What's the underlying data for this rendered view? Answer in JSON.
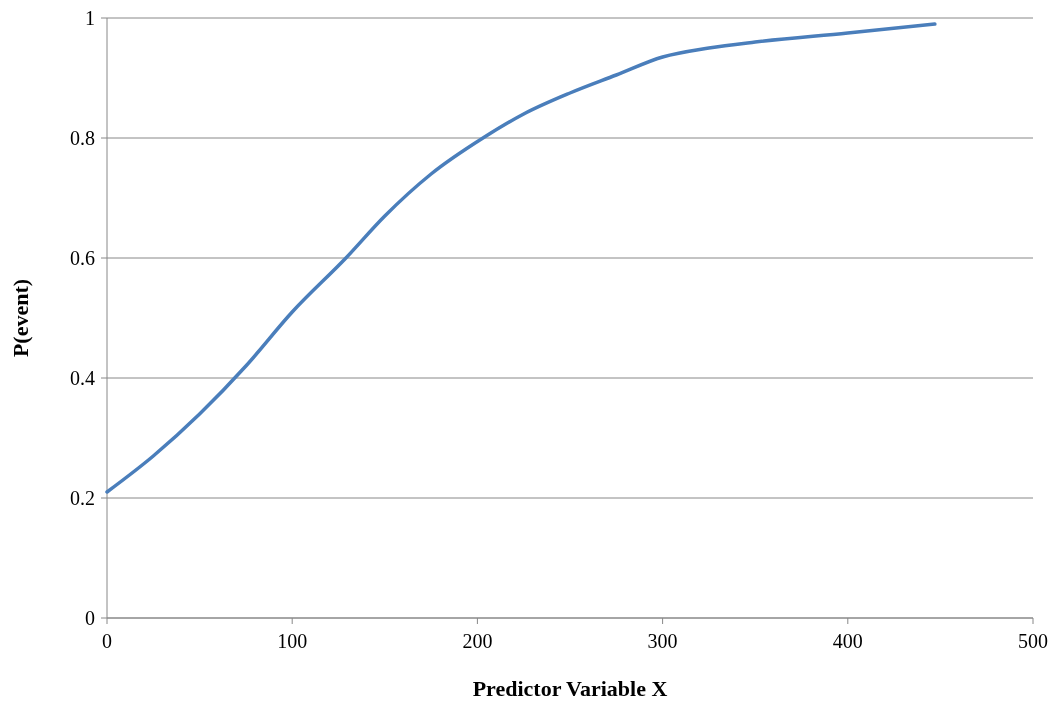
{
  "chart_data": {
    "type": "line",
    "xlabel": "Predictor Variable X",
    "ylabel": "P(event)",
    "series": [
      {
        "color": "#4a7ebb",
        "x": [
          0,
          25,
          50,
          75,
          100,
          129,
          150,
          175,
          203,
          225,
          250,
          275,
          300,
          325,
          350,
          400,
          447
        ],
        "values": [
          0.21,
          0.27,
          0.34,
          0.42,
          0.51,
          0.6,
          0.67,
          0.74,
          0.8,
          0.84,
          0.875,
          0.905,
          0.935,
          0.95,
          0.96,
          0.975,
          0.99
        ]
      }
    ],
    "xlim": [
      0,
      500
    ],
    "xticks": [
      0,
      100,
      200,
      300,
      400,
      500
    ],
    "ylim": [
      0,
      1
    ],
    "yticks": [
      0,
      0.2,
      0.4,
      0.6,
      0.8,
      1
    ],
    "grid": "y",
    "marker": "none",
    "line_style": "solid"
  }
}
